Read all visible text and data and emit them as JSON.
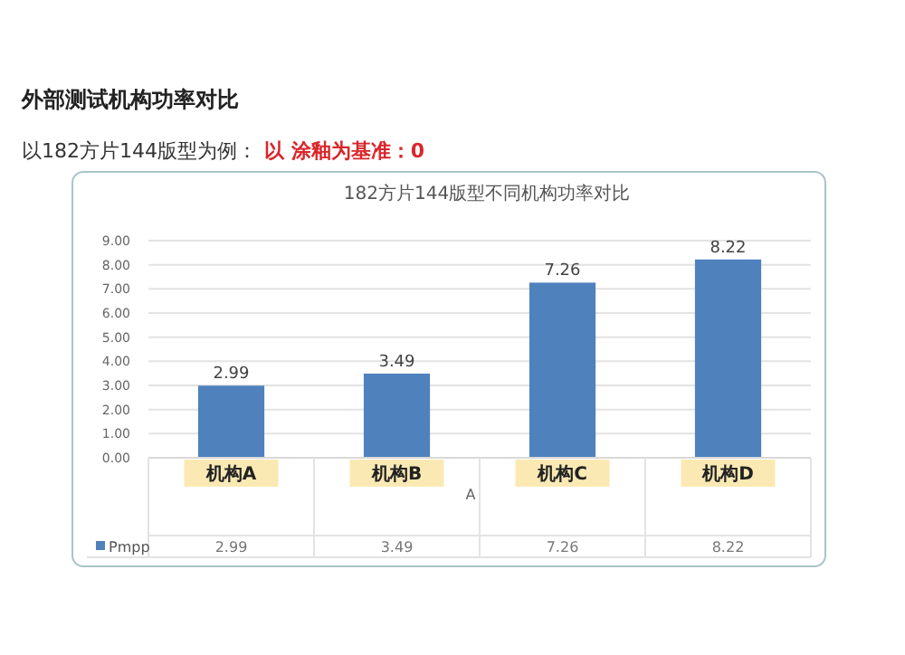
{
  "chart_data": {
    "type": "bar",
    "title": "182方片144版型不同机构功率对比",
    "subtitle": "以182方片144版型为例：",
    "annotations": [
      "外部测试机构功率对比",
      "以 涂釉为基准：0",
      "2.99",
      "3.49",
      "7.26",
      "8.22"
    ],
    "xlabel": "A",
    "categories": [
      "机构A",
      "机构B",
      "机构C",
      "机构D"
    ],
    "series": [
      {
        "name": "Pmpp",
        "color": "#4f81bd",
        "values": [
          2.99,
          3.49,
          7.26,
          8.22
        ]
      }
    ],
    "ylim": [
      0,
      9
    ],
    "yticks": [
      {
        "value": 0,
        "label": "0.00"
      },
      {
        "value": 1,
        "label": "1.00"
      },
      {
        "value": 2,
        "label": "2.00"
      },
      {
        "value": 3,
        "label": "3.00"
      },
      {
        "value": 4,
        "label": "4.00"
      },
      {
        "value": 5,
        "label": "5.00"
      },
      {
        "value": 6,
        "label": "6.00"
      },
      {
        "value": 7,
        "label": "7.00"
      },
      {
        "value": 8,
        "label": "8.00"
      },
      {
        "value": 9,
        "label": "9.00"
      }
    ],
    "grid": "y",
    "data_labels": true,
    "legend": "bottom left"
  }
}
